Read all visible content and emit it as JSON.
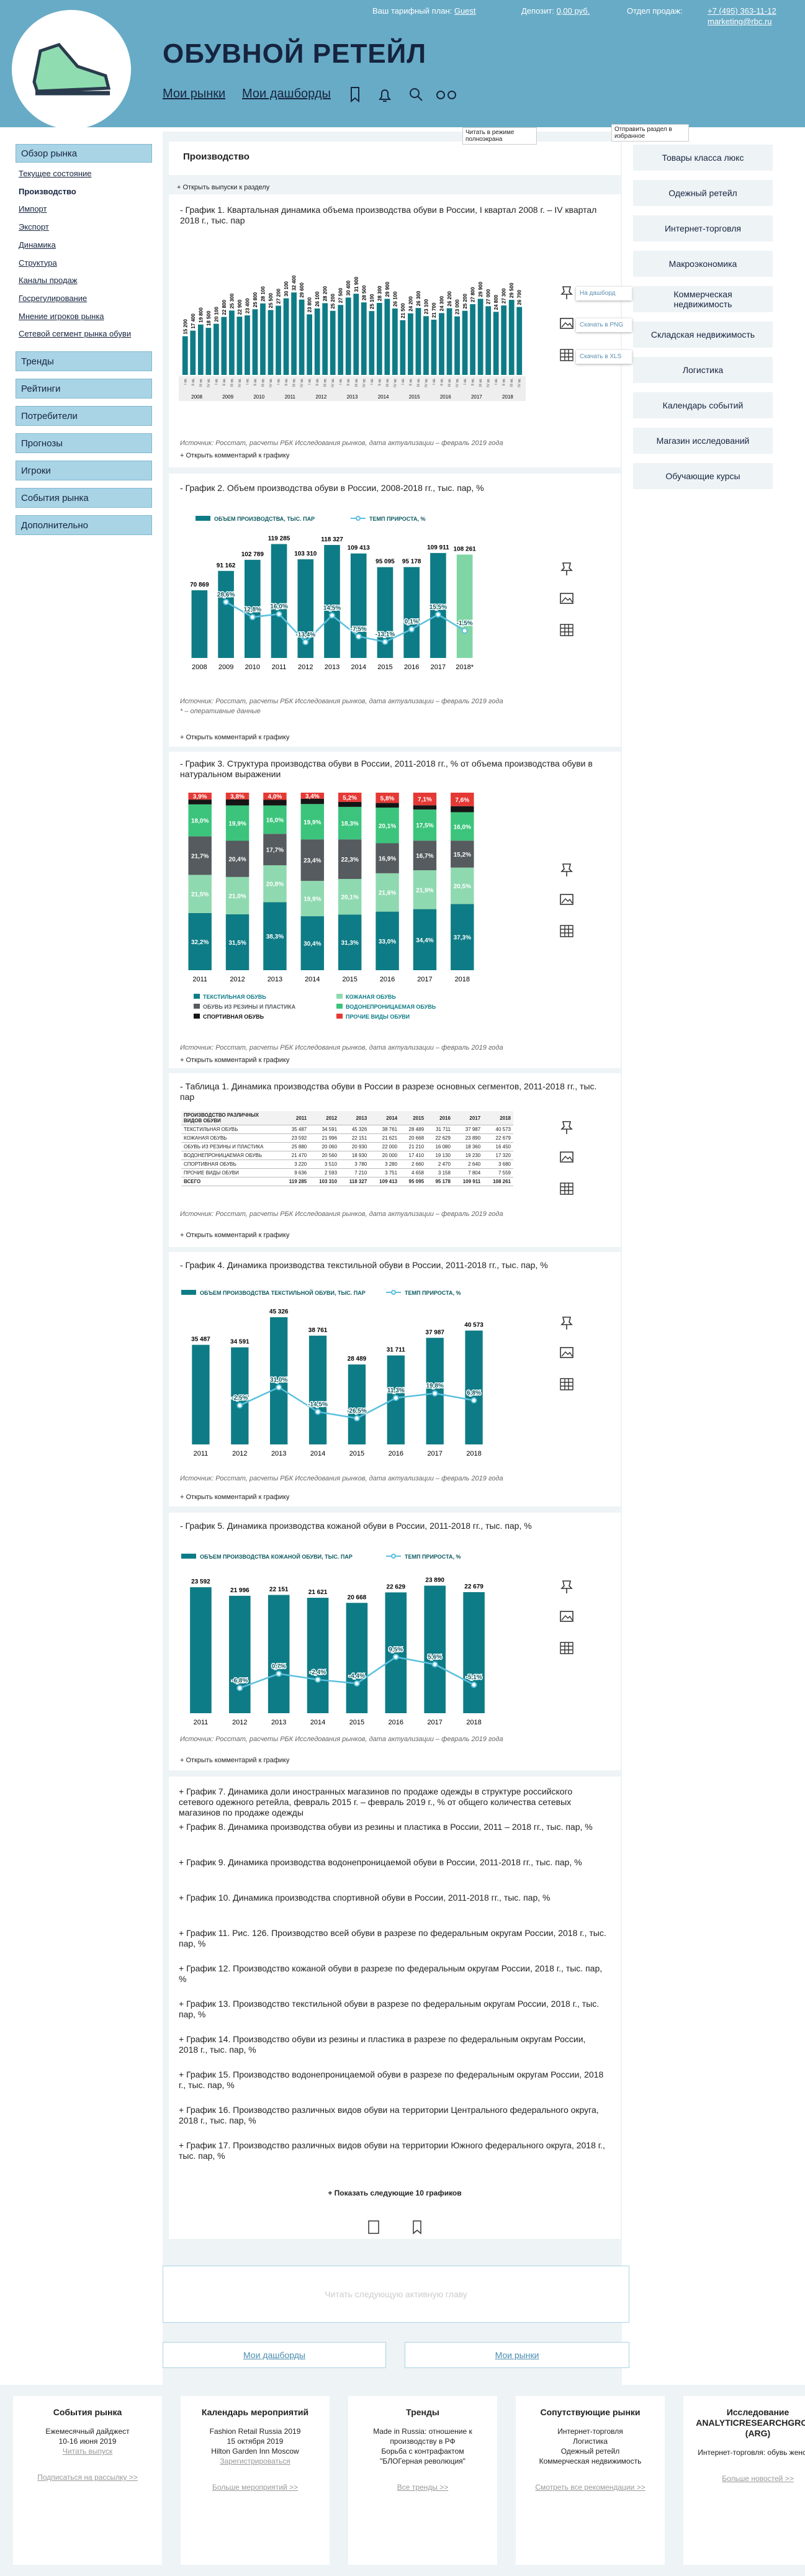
{
  "header": {
    "title": "ОБУВНОЙ РЕТЕЙЛ",
    "nav": [
      "Мои рынки",
      "Мои дашборды"
    ],
    "tariff_label": "Ваш тарифный план:",
    "tariff": "Guest",
    "deposit_label": "Депозит:",
    "deposit": "0,00 руб.",
    "sales_label": "Отдел продаж:",
    "phone": "+7 (495) 363-11-12",
    "email": "marketing@rbc.ru"
  },
  "left_menu": {
    "section": "Обзор рынка",
    "items": [
      "Текущее состояние",
      "Производство",
      "Импорт",
      "Экспорт",
      "Динамика",
      "Структура",
      "Каналы продаж",
      "Госрегулирование",
      "Мнение игроков рынка",
      "Сетевой сегмент рынка обуви"
    ],
    "active": 1,
    "buttons": [
      "Тренды",
      "Рейтинги",
      "Потребители",
      "Прогнозы",
      "Игроки",
      "События рынка",
      "Дополнительно"
    ]
  },
  "right_menu": [
    "Товары класса люкс",
    "Одежный ретейл",
    "Интернет-торговля",
    "Макроэкономика",
    "Коммерческая недвижимость",
    "Складская недвижимость",
    "Логистика",
    "Календарь событий",
    "Магазин исследований",
    "Обучающие курсы"
  ],
  "content": {
    "title": "Производство",
    "tooltips": [
      "Читать в режиме полноэкрана",
      "Отправить раздел в избранное"
    ],
    "open_all": "+ Открыть выпуски к разделу",
    "chart_menu": [
      "На дашборд",
      "Скачать в PNG",
      "Скачать в XLS"
    ],
    "comment_toggle": "+ Открыть комментарий к графику",
    "more_charts": [
      "+ График 7. Динамика доли иностранных магазинов по продаже одежды в структуре российского сетевого одежного ретейла, февраль 2015 г. – февраль 2019 г., % от общего количества сетевых магазинов по продаже одежды",
      "+ График 8. Динамика производства обуви из резины и пластика в России, 2011 – 2018 гг., тыс. пар, %",
      "+ График 9. Динамика производства водонепроницаемой обуви в России, 2011-2018 гг., тыс. пар, %",
      "+ График 10. Динамика производства спортивной обуви в России, 2011-2018 гг., тыс. пар, %",
      "+ График 11. Рис. 126. Производство всей обуви в разрезе по федеральным округам России, 2018 г., тыс. пар, %",
      "+ График 12. Производство кожаной обуви в разрезе по федеральным округам России, 2018 г., тыс. пар, %",
      "+ График 13. Производство текстильной обуви в разрезе по федеральным округам России, 2018 г., тыс. пар, %",
      "+ График 14. Производство обуви из резины и пластика в разрезе по федеральным округам России, 2018 г., тыс. пар, %",
      "+ График 15. Производство водонепроницаемой обуви в разрезе по федеральным округам России, 2018 г., тыс. пар, %",
      "+ График 16. Производство различных видов обуви на территории Центрального федерального округа, 2018 г., тыс. пар, %",
      "+ График 17. Производство различных видов обуви на территории Южного федерального округа, 2018 г., тыс. пар, %"
    ],
    "show_more": "+ Показать следующие 10 графиков",
    "next_chapter": "Читать следующую активную главу",
    "buttons": [
      "Мои дашборды",
      "Мои рынки"
    ]
  },
  "chart_data": [
    {
      "type": "bar",
      "title": "- График 1. Квартальная динамика объема производства обуви в России, I квартал 2008 г. – IV квартал 2018 г., тыс. пар",
      "source": "Источник: Росстат, расчеты РБК Исследования рынков, дата актуализации – февраль 2019 года",
      "categories": [
        "I кв.",
        "II кв.",
        "III кв.",
        "IV кв.",
        "I кв.",
        "II кв.",
        "III кв.",
        "IV кв.",
        "I кв.",
        "II кв.",
        "III кв.",
        "IV кв.",
        "I кв.",
        "II кв.",
        "III кв.",
        "IV кв.",
        "I кв.",
        "II кв.",
        "III кв.",
        "IV кв.",
        "I кв.",
        "II кв.",
        "III кв.",
        "IV кв.",
        "I кв.",
        "II кв.",
        "III кв.",
        "IV кв.",
        "I кв.",
        "II кв.",
        "III кв.",
        "IV кв.",
        "I кв.",
        "II кв.",
        "III кв.",
        "IV кв.",
        "I кв.",
        "II кв.",
        "III кв.",
        "IV кв.",
        "I кв.",
        "II кв.",
        "III кв.",
        "IV кв."
      ],
      "years": [
        "2008",
        "2009",
        "2010",
        "2011",
        "2012",
        "2013",
        "2014",
        "2015",
        "2016",
        "2017",
        "2018"
      ],
      "ylim": [
        0,
        40000
      ],
      "series": [
        {
          "name": "Объем производства",
          "color": "#0e7c86",
          "values": [
            15200,
            17400,
            19800,
            18500,
            20100,
            22800,
            25300,
            22900,
            23400,
            25800,
            28100,
            25500,
            27200,
            30100,
            32400,
            29600,
            23800,
            26100,
            28200,
            25200,
            27500,
            30400,
            31900,
            28500,
            25100,
            28300,
            29900,
            26100,
            21500,
            24200,
            26300,
            23100,
            21700,
            24300,
            26200,
            23000,
            25200,
            27800,
            29900,
            27000,
            24800,
            27300,
            29500,
            26700
          ],
          "value_labels": [
            "15 200",
            "17 400",
            "19 800",
            "18 500",
            "20 100",
            "22 800",
            "25 300",
            "22 900",
            "23 400",
            "25 800",
            "28 100",
            "25 500",
            "27 200",
            "30 100",
            "32 400",
            "29 600",
            "23 800",
            "26 100",
            "28 200",
            "25 200",
            "27 500",
            "30 400",
            "31 900",
            "28 500",
            "25 100",
            "28 300",
            "29 900",
            "26 100",
            "21 500",
            "24 200",
            "26 300",
            "23 100",
            "21 700",
            "24 300",
            "26 200",
            "23 000",
            "25 200",
            "27 800",
            "29 900",
            "27 000",
            "24 800",
            "27 300",
            "29 500",
            "26 700"
          ]
        }
      ]
    },
    {
      "type": "bar_line",
      "title": "- График 2. Объем производства обуви в России, 2008-2018 гг., тыс. пар, %",
      "source": "Источник: Росстат, расчеты РБК Исследования рынков, дата актуализации – февраль 2019 года",
      "note": "* – оперативные данные",
      "categories": [
        "2008",
        "2009",
        "2010",
        "2011",
        "2012",
        "2013",
        "2014",
        "2015",
        "2016",
        "2017",
        "2018*"
      ],
      "ylim": [
        0,
        130000
      ],
      "y2lim": [
        -30,
        100
      ],
      "series": [
        {
          "name": "ОБЪЕМ ПРОИЗВОДСТВА, ТЫС. ПАР",
          "color": "#0e7c86",
          "colors": [
            "#0e7c86",
            "#0e7c86",
            "#0e7c86",
            "#0e7c86",
            "#0e7c86",
            "#0e7c86",
            "#0e7c86",
            "#0e7c86",
            "#0e7c86",
            "#0e7c86",
            "#7fd6a4"
          ],
          "values": [
            70869,
            91162,
            102789,
            119285,
            103310,
            118327,
            109413,
            95095,
            95178,
            109911,
            108261
          ],
          "value_labels": [
            "70 869",
            "91 162",
            "102 789",
            "119 285",
            "103 310",
            "118 327",
            "109 413",
            "95 095",
            "95 178",
            "109 911",
            "108 261"
          ]
        },
        {
          "name": "ТЕМП ПРИРОСТА, %",
          "type": "line",
          "axis": "y2",
          "color": "#5bc0de",
          "values": [
            null,
            28.6,
            12.8,
            16.0,
            -13.4,
            14.5,
            -7.5,
            -13.1,
            0.1,
            15.5,
            -1.5
          ],
          "value_labels": [
            null,
            "28,6%",
            "12,8%",
            "16,0%",
            "-13,4%",
            "14,5%",
            "-7,5%",
            "-13,1%",
            "0,1%",
            "15,5%",
            "-1,5%"
          ]
        }
      ]
    },
    {
      "type": "stacked_bar",
      "title": "- График 3. Структура производства обуви в России, 2011-2018 гг., % от объема производства обуви в натуральном выражении",
      "source": "Источник: Росстат, расчеты РБК Исследования рынков, дата актуализации – февраль 2019 года",
      "categories": [
        "2011",
        "2012",
        "2013",
        "2014",
        "2015",
        "2016",
        "2017",
        "2018"
      ],
      "ylim": [
        0,
        100
      ],
      "series": [
        {
          "name": "ТЕКСТИЛЬНАЯ ОБУВЬ",
          "color": "#0e7c86",
          "values": [
            32.2,
            31.5,
            38.3,
            30.4,
            31.3,
            33.0,
            34.4,
            37.3
          ],
          "value_labels": [
            "32,2%",
            "31,5%",
            "38,3%",
            "30,4%",
            "31,3%",
            "33,0%",
            "34,4%",
            "37,3%"
          ]
        },
        {
          "name": "КОЖАНАЯ ОБУВЬ",
          "color": "#8fd9b0",
          "values": [
            21.5,
            21.0,
            20.8,
            19.9,
            20.1,
            21.6,
            21.9,
            20.5
          ],
          "value_labels": [
            "21,5%",
            "21,0%",
            "20,8%",
            "19,9%",
            "20,1%",
            "21,6%",
            "21,9%",
            "20,5%"
          ]
        },
        {
          "name": "ОБУВЬ ИЗ РЕЗИНЫ И ПЛАСТИКА",
          "color": "#555b5e",
          "values": [
            21.7,
            20.4,
            17.7,
            23.4,
            22.3,
            16.9,
            16.7,
            15.2
          ],
          "value_labels": [
            "21,7%",
            "20,4%",
            "17,7%",
            "23,4%",
            "22,3%",
            "16,9%",
            "16,7%",
            "15,2%"
          ]
        },
        {
          "name": "ВОДОНЕПРОНИЦАЕМАЯ ОБУВЬ",
          "color": "#3cc47c",
          "values": [
            18.0,
            19.9,
            16.0,
            19.9,
            18.3,
            20.1,
            17.5,
            16.0
          ],
          "value_labels": [
            "18,0%",
            "19,9%",
            "16,0%",
            "19,9%",
            "18,3%",
            "20,1%",
            "17,5%",
            "16,0%"
          ]
        },
        {
          "name": "СПОРТИВНАЯ ОБУВЬ",
          "color": "#151515",
          "values": [
            2.7,
            3.4,
            3.2,
            3.0,
            2.8,
            2.6,
            2.4,
            3.4
          ]
        },
        {
          "name": "ПРОЧИЕ ВИДЫ ОБУВИ",
          "color": "#e53935",
          "values": [
            3.9,
            3.8,
            4.0,
            3.4,
            5.2,
            5.8,
            7.1,
            7.6
          ],
          "value_labels": [
            "3,9%",
            "3,8%",
            "4,0%",
            "3,4%",
            "5,2%",
            "5,8%",
            "7,1%",
            "7,6%"
          ]
        }
      ]
    },
    {
      "type": "bar_line",
      "title": "- График 4. Динамика производства текстильной обуви в России, 2011-2018 гг., тыс. пар, %",
      "source": "Источник: Росстат, расчеты РБК Исследования рынков, дата актуализации – февраль 2019 года",
      "categories": [
        "2011",
        "2012",
        "2013",
        "2014",
        "2015",
        "2016",
        "2017",
        "2018"
      ],
      "ylim": [
        0,
        48000
      ],
      "y2lim": [
        -75,
        175
      ],
      "series": [
        {
          "name": "ОБЪЕМ ПРОИЗВОДСТВА ТЕКСТИЛЬНОЙ ОБУВИ, ТЫС. ПАР",
          "color": "#0e7c86",
          "values": [
            35487,
            34591,
            45326,
            38761,
            28489,
            31711,
            37987,
            40573
          ],
          "value_labels": [
            "35 487",
            "34 591",
            "45 326",
            "38 761",
            "28 489",
            "31 711",
            "37 987",
            "40 573"
          ]
        },
        {
          "name": "ТЕМП ПРИРОСТА, %",
          "type": "line",
          "axis": "y2",
          "color": "#5bc0de",
          "values": [
            null,
            -2.5,
            31.0,
            -14.5,
            -26.5,
            11.3,
            19.8,
            6.8
          ],
          "value_labels": [
            null,
            "-2,5%",
            "31,0%",
            "-14,5%",
            "-26,5%",
            "11,3%",
            "19,8%",
            "6,8%"
          ]
        }
      ]
    },
    {
      "type": "bar_line",
      "title": "- График 5. Динамика производства кожаной обуви в России, 2011-2018 гг., тыс. пар, %",
      "source": "Источник: Росстат, расчеты РБК Исследования рынков, дата актуализации – февраль 2019 года",
      "categories": [
        "2011",
        "2012",
        "2013",
        "2014",
        "2015",
        "2016",
        "2017",
        "2018"
      ],
      "ylim": [
        0,
        25000
      ],
      "y2lim": [
        -20,
        50
      ],
      "series": [
        {
          "name": "ОБЪЕМ ПРОИЗВОДСТВА КОЖАНОЙ ОБУВИ, ТЫС. ПАР",
          "color": "#0e7c86",
          "values": [
            23592,
            21996,
            22151,
            21621,
            20668,
            22629,
            23890,
            22679
          ],
          "value_labels": [
            "23 592",
            "21 996",
            "22 151",
            "21 621",
            "20 668",
            "22 629",
            "23 890",
            "22 679"
          ]
        },
        {
          "name": "ТЕМП ПРИРОСТА, %",
          "type": "line",
          "axis": "y2",
          "color": "#5bc0de",
          "values": [
            null,
            -6.8,
            0.7,
            -2.4,
            -4.4,
            9.5,
            5.6,
            -5.1
          ],
          "value_labels": [
            null,
            "-6,8%",
            "0,7%",
            "-2,4%",
            "-4,4%",
            "9,5%",
            "5,6%",
            "-5,1%"
          ]
        }
      ]
    }
  ],
  "table": {
    "title": "- Таблица 1. Динамика производства обуви в России в разрезе основных сегментов, 2011-2018 гг., тыс. пар",
    "source": "Источник: Росстат, расчеты РБК Исследования рынков, дата актуализации – февраль 2019 года",
    "header": [
      "ПРОИЗВОДСТВО РАЗЛИЧНЫХ ВИДОВ ОБУВИ",
      "2011",
      "2012",
      "2013",
      "2014",
      "2015",
      "2016",
      "2017",
      "2018"
    ],
    "rows": [
      [
        "ТЕКСТИЛЬНАЯ ОБУВЬ",
        "35 487",
        "34 591",
        "45 326",
        "38 761",
        "28 489",
        "31 711",
        "37 987",
        "40 573"
      ],
      [
        "КОЖАНАЯ ОБУВЬ",
        "23 592",
        "21 996",
        "22 151",
        "21 621",
        "20 668",
        "22 629",
        "23 890",
        "22 679"
      ],
      [
        "ОБУВЬ ИЗ РЕЗИНЫ И ПЛАСТИКА",
        "25 880",
        "20 060",
        "20 930",
        "22 000",
        "21 210",
        "16 080",
        "18 360",
        "16 450"
      ],
      [
        "ВОДОНЕПРОНИЦАЕМАЯ ОБУВЬ",
        "21 470",
        "20 560",
        "18 930",
        "20 000",
        "17 410",
        "19 130",
        "19 230",
        "17 320"
      ],
      [
        "СПОРТИВНАЯ ОБУВЬ",
        "3 220",
        "3 510",
        "3 780",
        "3 280",
        "2 660",
        "2 470",
        "2 640",
        "3 680"
      ],
      [
        "ПРОЧИЕ ВИДЫ ОБУВИ",
        "9 636",
        "2 593",
        "7 210",
        "3 751",
        "4 658",
        "3 158",
        "7 804",
        "7 559"
      ],
      [
        "ВСЕГО",
        "119 285",
        "103 310",
        "118 327",
        "109 413",
        "95 095",
        "95 178",
        "109 911",
        "108 261"
      ]
    ]
  },
  "footer": [
    {
      "title": "События рынка",
      "lines": [
        "Ежемесячный дайджест",
        "10-16 июня 2019"
      ],
      "link": "Читать выпуск",
      "more": "Подписаться на рассылку >>"
    },
    {
      "title": "Календарь мероприятий",
      "lines": [
        "Fashion Retail Russia 2019",
        "15 октября 2019",
        "Hilton Garden Inn Moscow"
      ],
      "link": "Зарегистрироваться",
      "more": "Больше мероприятий >>"
    },
    {
      "title": "Тренды",
      "lines": [
        "Made in Russia: отношение к производству в РФ",
        "Борьба с контрафактом",
        "\"БЛОГерная революция\""
      ],
      "more": "Все тренды >>"
    },
    {
      "title": "Сопутствующие рынки",
      "lines": [
        "Интернет-торговля",
        "Логистика",
        "Одежный ретейл",
        "Коммерческая недвижимость"
      ],
      "more": "Смотреть все рекомендации >>"
    },
    {
      "title": "Исследование ANALYTICRESEARCHGROUP (ARG)",
      "lines": [
        "Интернет-торговля: обувь женская"
      ],
      "more": "Больше новостей >>"
    }
  ]
}
